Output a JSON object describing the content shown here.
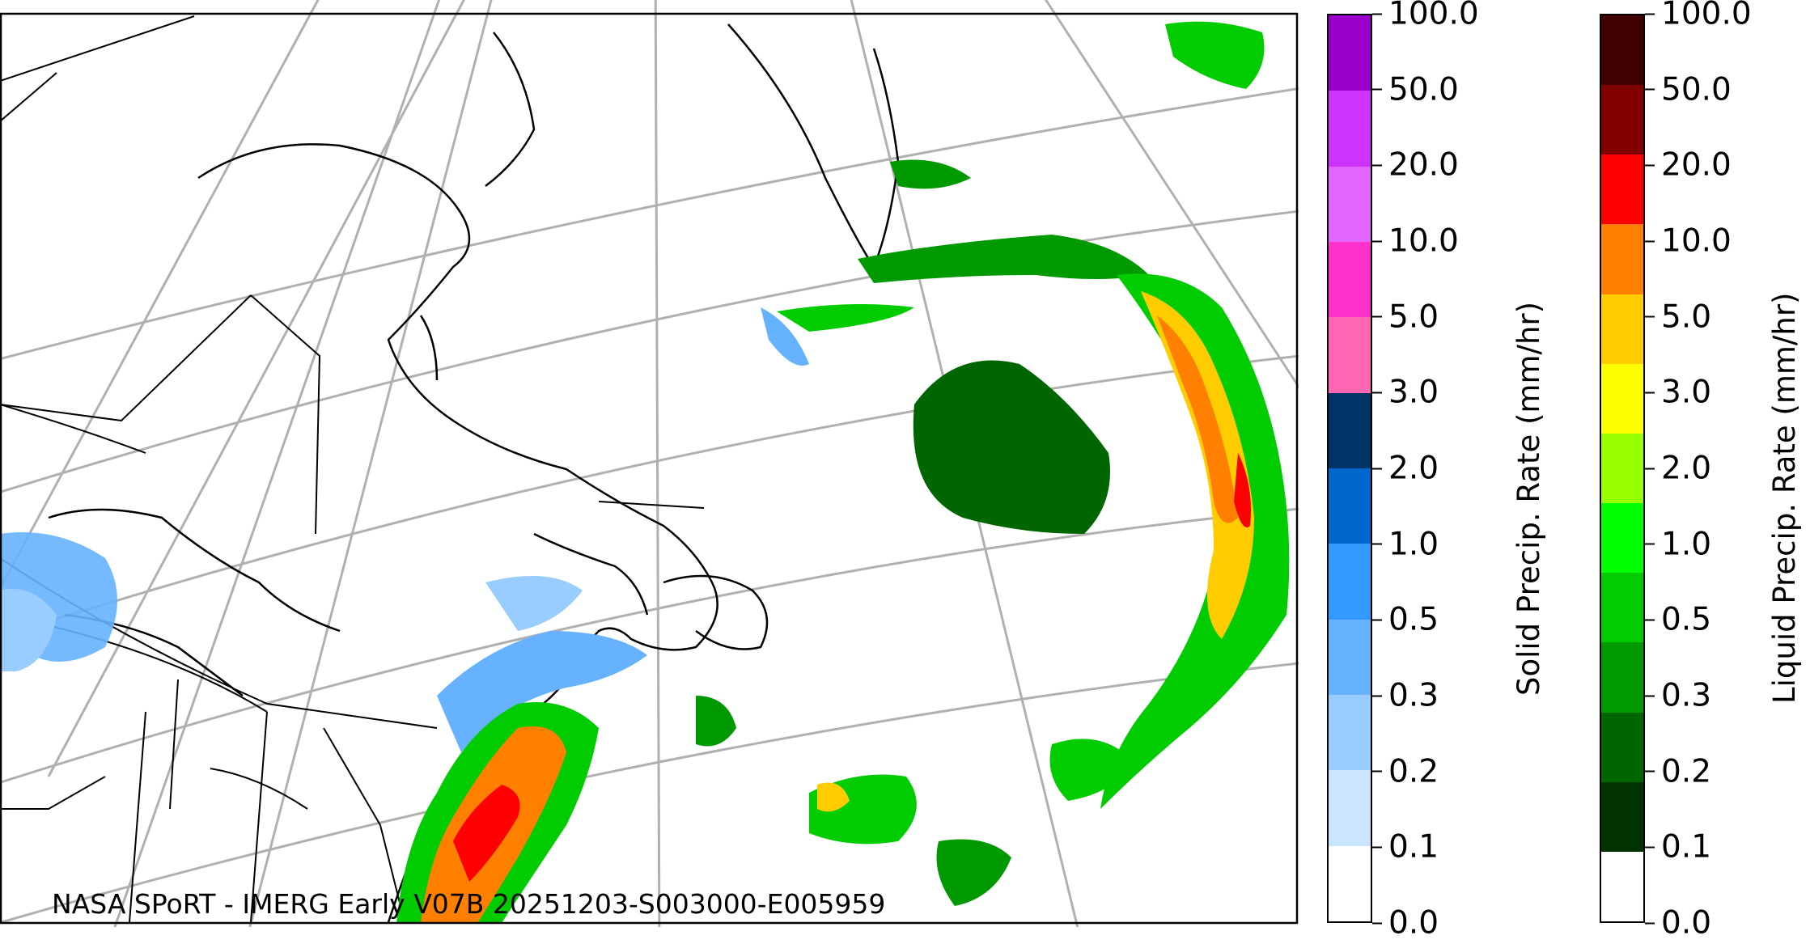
{
  "credit": "NASA SPoRT - IMERG Early V07B 20251203-S003000-E005959",
  "colorbars": [
    {
      "label": "Solid Precip. Rate (mm/hr)",
      "ticks": [
        "0.0",
        "0.1",
        "0.2",
        "0.3",
        "0.5",
        "1.0",
        "2.0",
        "3.0",
        "5.0",
        "10.0",
        "20.0",
        "50.0",
        "100.0"
      ],
      "colors": [
        "#ffffff",
        "#cce5ff",
        "#99ccff",
        "#66b2ff",
        "#3399ff",
        "#0066cc",
        "#003366",
        "#ff66b2",
        "#ff33cc",
        "#e066ff",
        "#cc33ff",
        "#9900cc"
      ]
    },
    {
      "label": "Liquid Precip. Rate (mm/hr)",
      "ticks": [
        "0.0",
        "0.1",
        "0.2",
        "0.3",
        "0.5",
        "1.0",
        "2.0",
        "3.0",
        "5.0",
        "10.0",
        "20.0",
        "50.0",
        "100.0"
      ],
      "colors": [
        "#ffffff",
        "#003300",
        "#006600",
        "#009900",
        "#00cc00",
        "#00ff00",
        "#99ff00",
        "#ffff00",
        "#ffcc00",
        "#ff8000",
        "#ff0000",
        "#800000",
        "#400000"
      ]
    }
  ]
}
